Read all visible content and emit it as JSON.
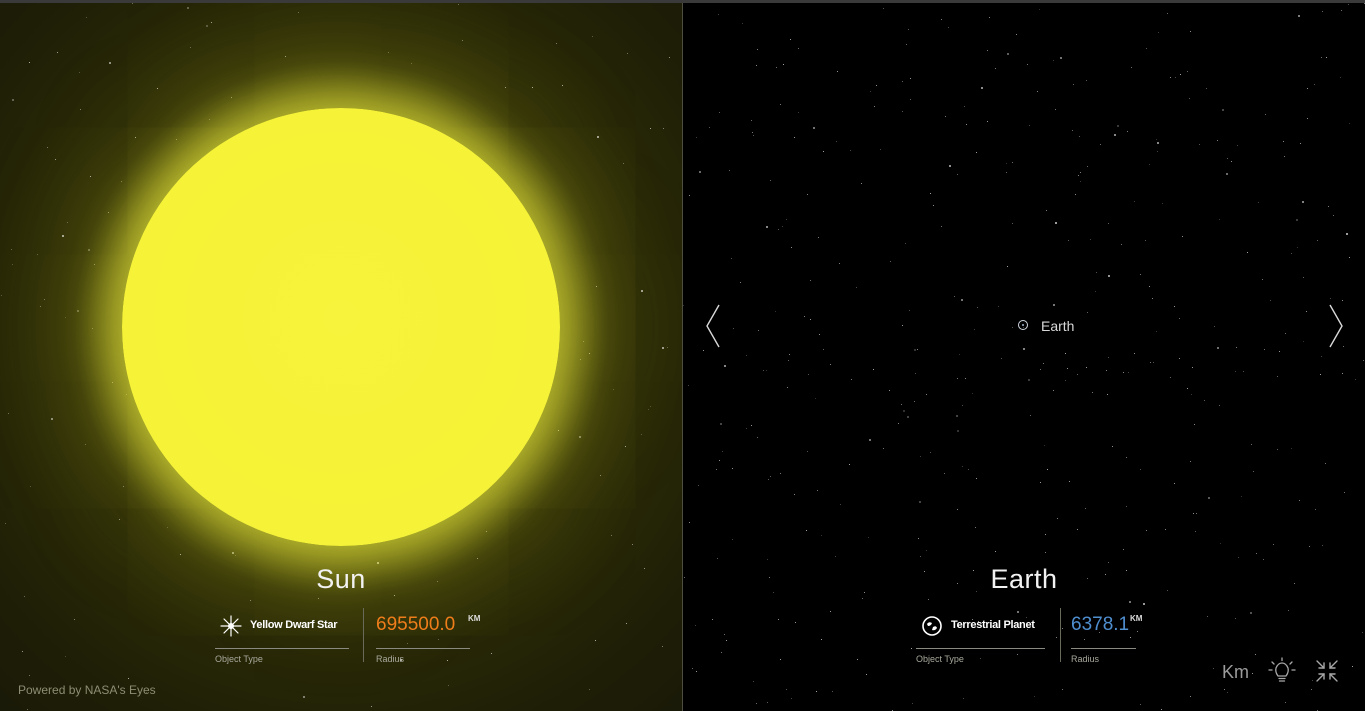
{
  "left": {
    "name": "Sun",
    "object_type": "Yellow Dwarf Star",
    "object_type_label": "Object Type",
    "radius_value": "695500.0",
    "radius_unit": "KM",
    "radius_label": "Radius",
    "radius_color": "#ef7d1a",
    "type_icon": "star-icon"
  },
  "right": {
    "name": "Earth",
    "marker_label": "Earth",
    "object_type": "Terrestrial Planet",
    "object_type_label": "Object Type",
    "radius_value": "6378.1",
    "radius_unit": "KM",
    "radius_label": "Radius",
    "radius_color": "#4f8fd0",
    "type_icon": "planet-icon"
  },
  "footer": {
    "powered_by": "Powered by NASA's Eyes"
  },
  "controls": {
    "unit_toggle": "Km",
    "lighting_icon": "lightbulb-icon",
    "fullscreen_icon": "collapse-icon",
    "prev_icon": "chevron-left-icon",
    "next_icon": "chevron-right-icon"
  }
}
